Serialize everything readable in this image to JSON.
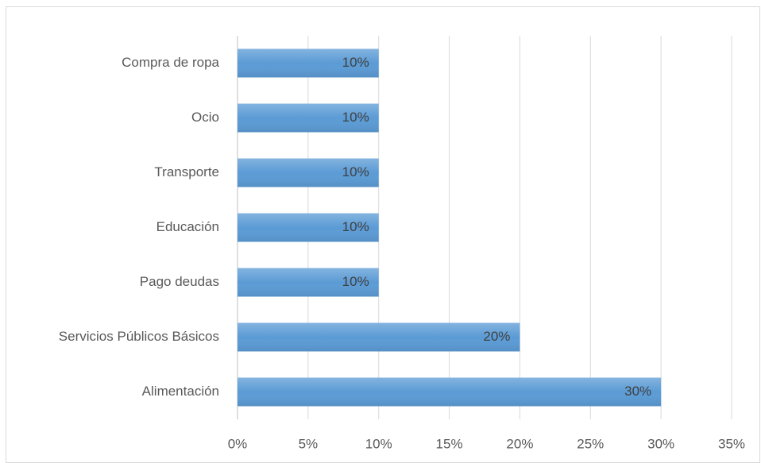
{
  "chart_data": {
    "type": "bar",
    "orientation": "horizontal",
    "categories": [
      "Compra de ropa",
      "Ocio",
      "Transporte",
      "Educación",
      "Pago deudas",
      "Servicios Públicos Básicos",
      "Alimentación"
    ],
    "values": [
      10,
      10,
      10,
      10,
      10,
      20,
      30
    ],
    "value_labels": [
      "10%",
      "10%",
      "10%",
      "10%",
      "10%",
      "20%",
      "30%"
    ],
    "color": "#5b9bd5",
    "xlim": [
      0,
      35
    ],
    "xticks": [
      {
        "value": 0,
        "label": "0%"
      },
      {
        "value": 5,
        "label": "5%"
      },
      {
        "value": 10,
        "label": "10%"
      },
      {
        "value": 15,
        "label": "15%"
      },
      {
        "value": 20,
        "label": "20%"
      },
      {
        "value": 25,
        "label": "25%"
      },
      {
        "value": 30,
        "label": "30%"
      },
      {
        "value": 35,
        "label": "35%"
      }
    ],
    "grid": true
  }
}
